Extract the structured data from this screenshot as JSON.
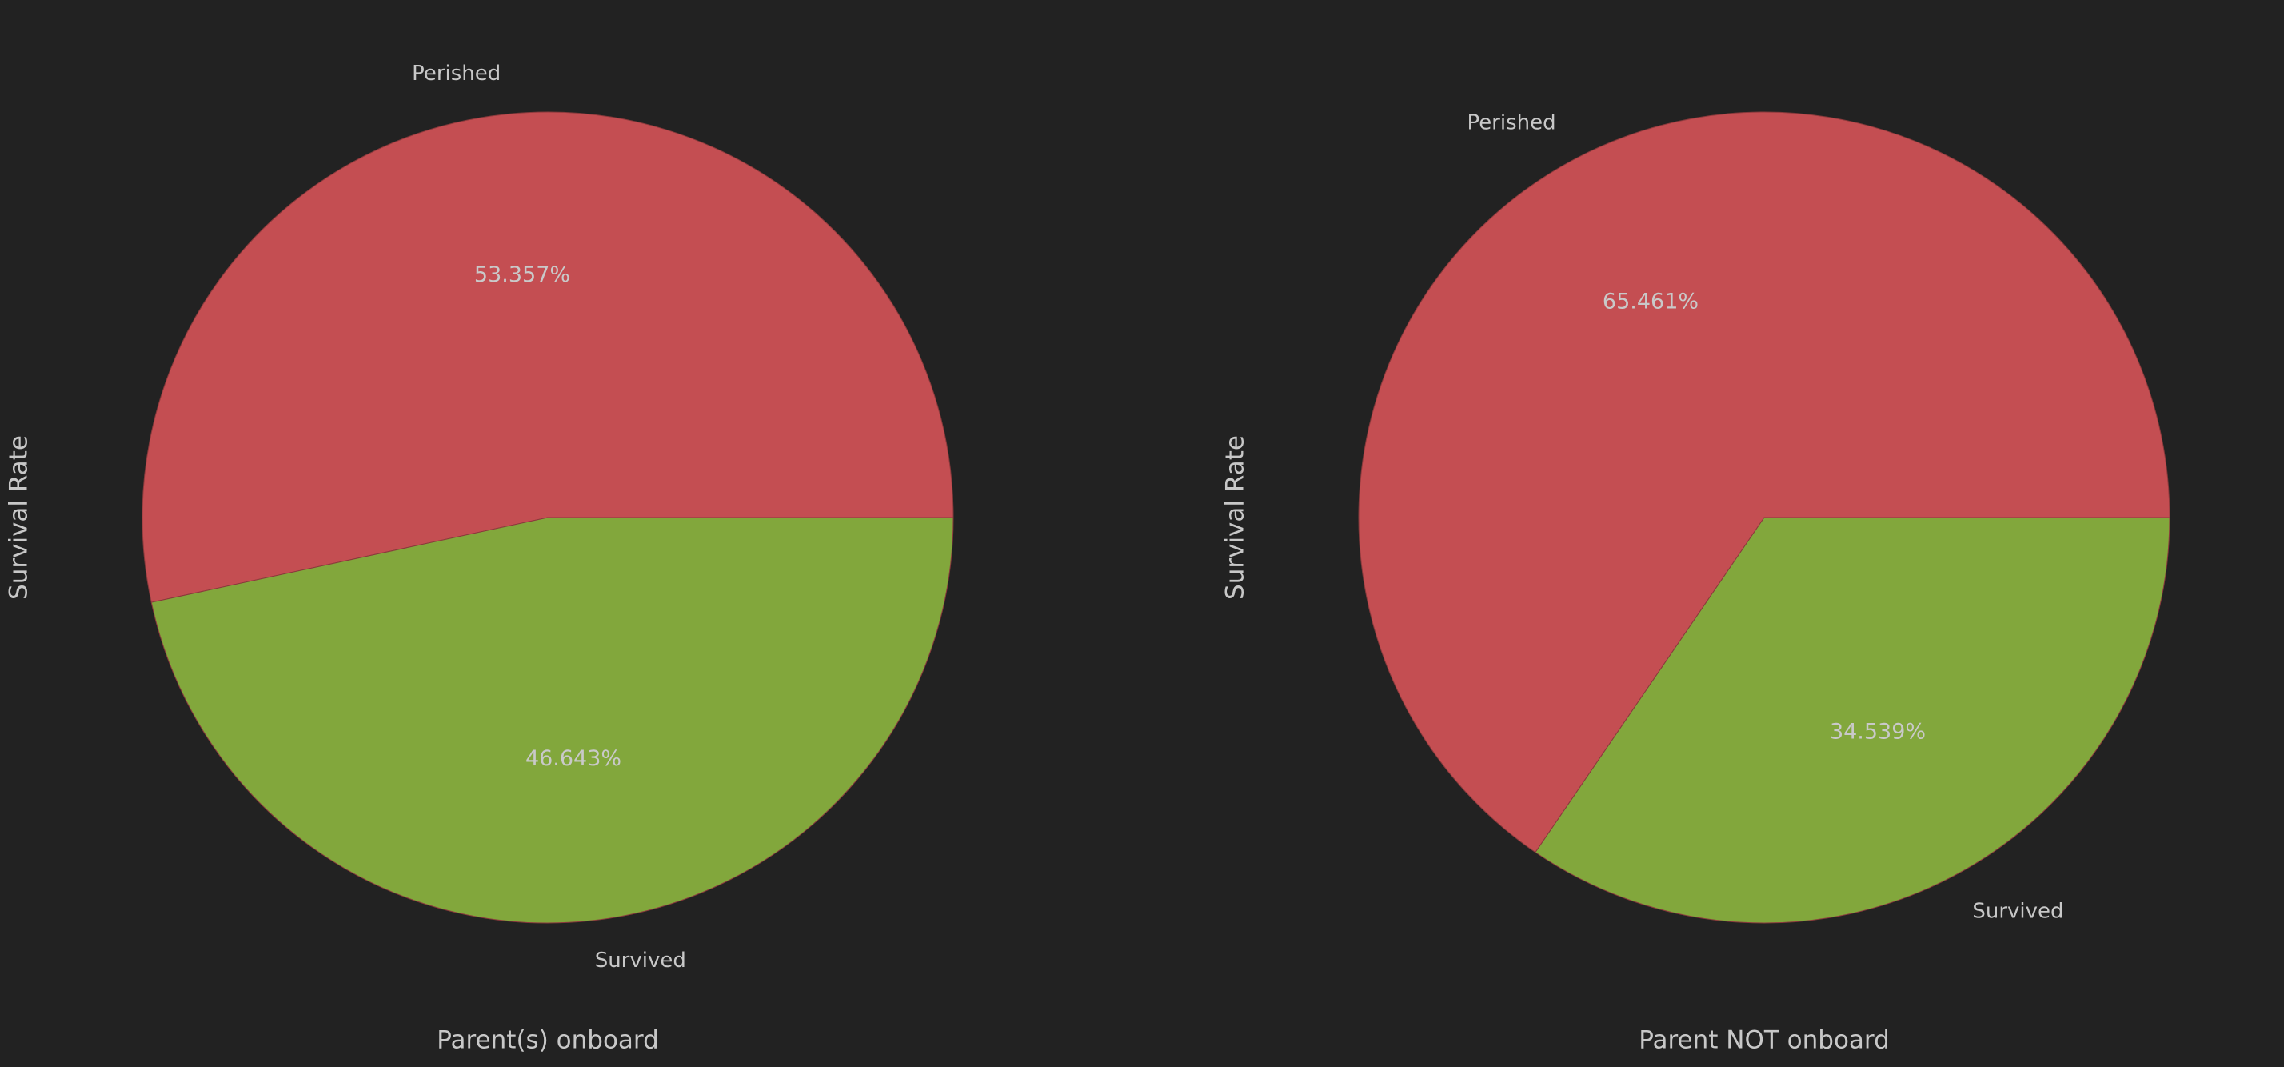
{
  "chart_data": [
    {
      "type": "pie",
      "xlabel": "Parent(s) onboard",
      "ylabel": "Survival Rate",
      "categories": [
        "Perished",
        "Survived"
      ],
      "values": [
        53.357,
        46.643
      ],
      "value_labels": [
        "53.357%",
        "46.643%"
      ],
      "colors": [
        "#c44e52",
        "#82a73c"
      ]
    },
    {
      "type": "pie",
      "xlabel": "Parent NOT onboard",
      "ylabel": "Survival Rate",
      "categories": [
        "Perished",
        "Survived"
      ],
      "values": [
        65.461,
        34.539
      ],
      "value_labels": [
        "65.461%",
        "34.539%"
      ],
      "colors": [
        "#c44e52",
        "#82a73c"
      ]
    }
  ]
}
